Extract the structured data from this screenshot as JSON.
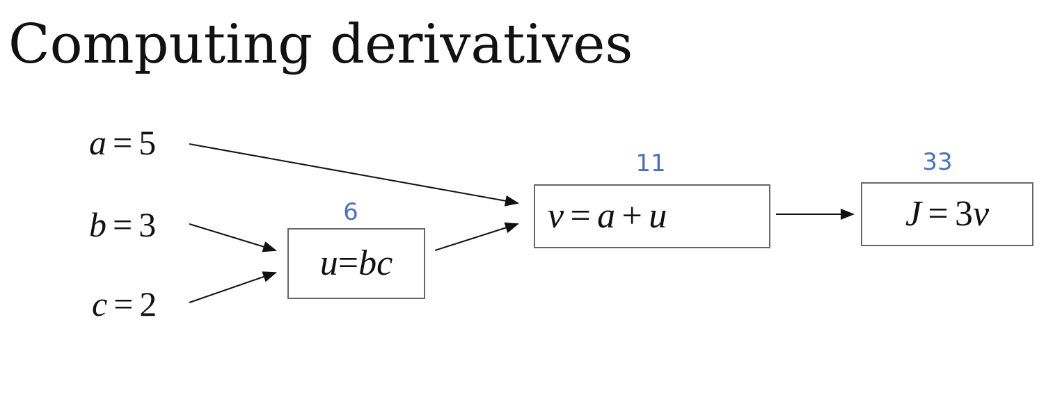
{
  "title": "Computing derivatives",
  "inputs": {
    "a": {
      "var": "a",
      "eq": "=",
      "value": "5"
    },
    "b": {
      "var": "b",
      "eq": "=",
      "value": "3"
    },
    "c": {
      "var": "c",
      "eq": "=",
      "value": "2"
    }
  },
  "nodes": {
    "u": {
      "value": "6",
      "lhs": "u",
      "eq": "=",
      "t1": "b",
      "t2": "c"
    },
    "v": {
      "value": "11",
      "lhs": "v",
      "eq": "=",
      "t1": "a",
      "op": "+",
      "t2": "u"
    },
    "j": {
      "value": "33",
      "lhs": "J",
      "eq": "=",
      "coef": "3",
      "t1": "v"
    }
  },
  "edges": [
    {
      "from": "a",
      "to": "v"
    },
    {
      "from": "b",
      "to": "u"
    },
    {
      "from": "c",
      "to": "u"
    },
    {
      "from": "u",
      "to": "v"
    },
    {
      "from": "v",
      "to": "j"
    }
  ],
  "colors": {
    "text": "#111111",
    "node_value": "#4a72b8",
    "box_border": "#666666",
    "arrow": "#111111"
  }
}
